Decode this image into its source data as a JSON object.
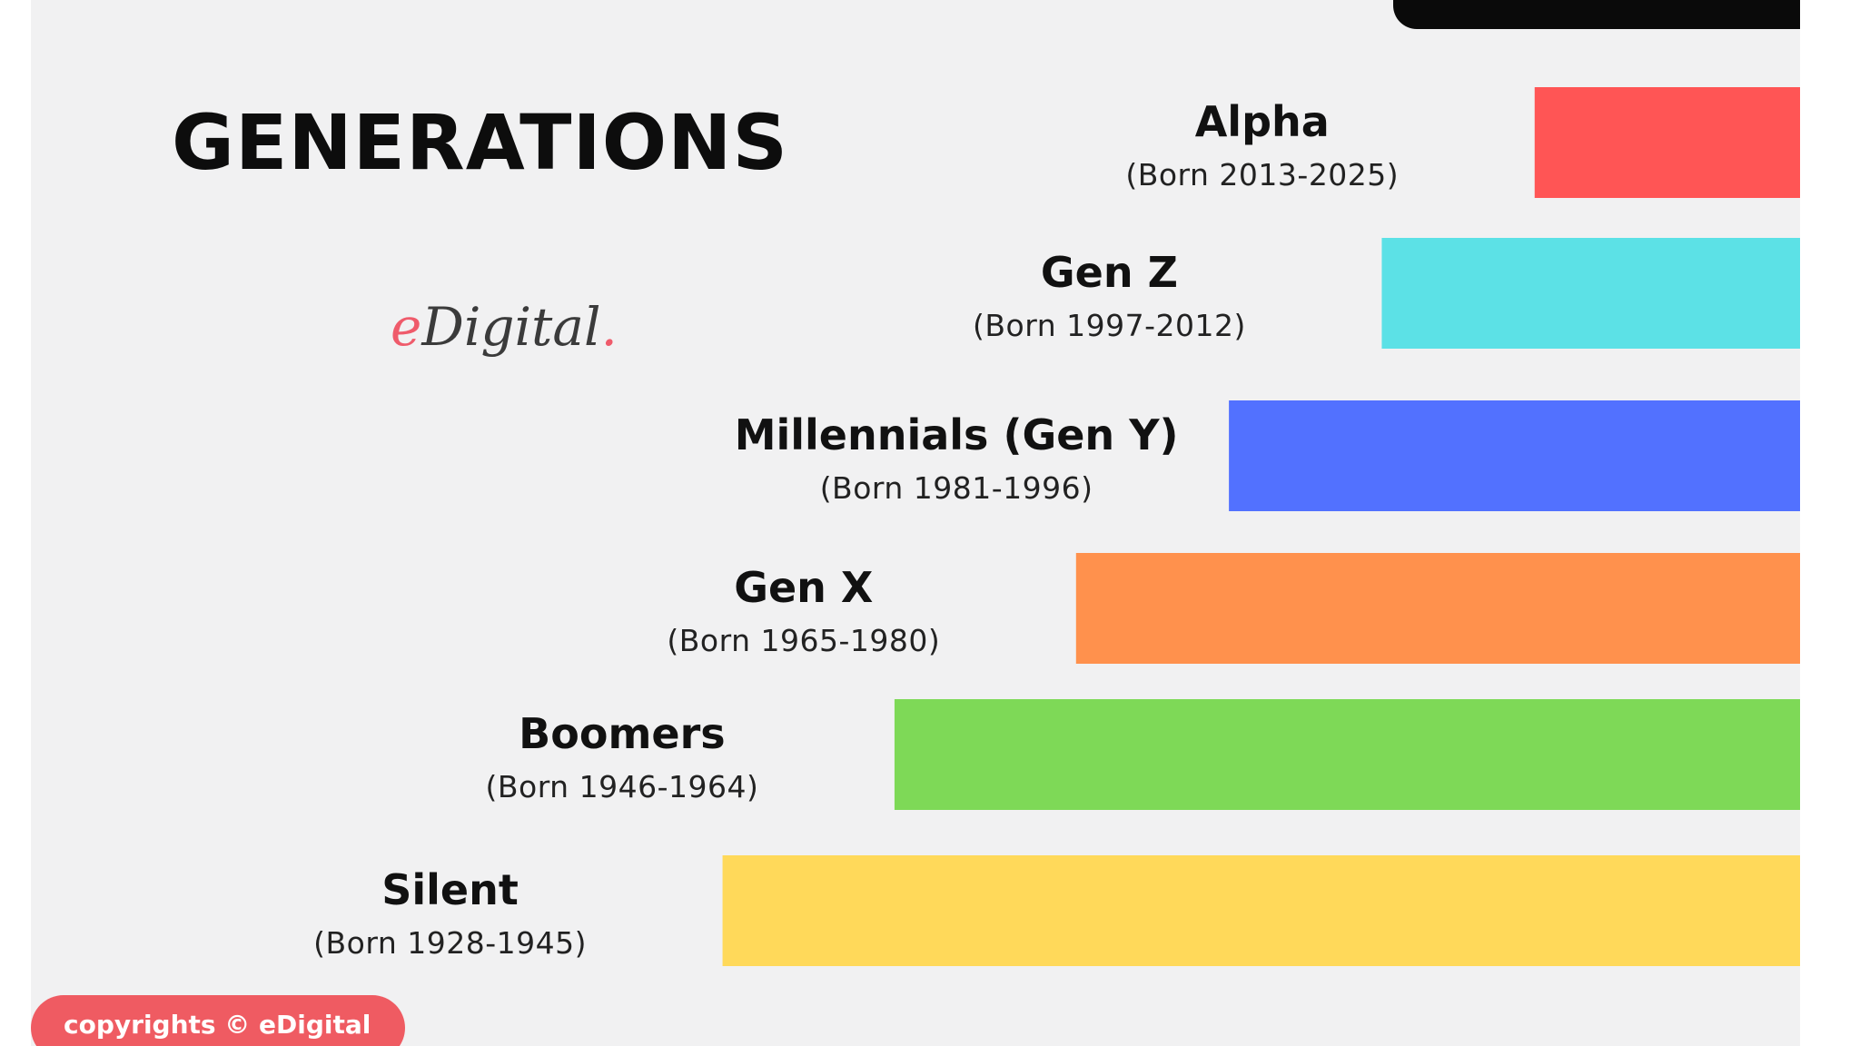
{
  "chart_data": {
    "type": "bar",
    "orientation": "horizontal",
    "title": "GENERATIONS",
    "grid": false,
    "bars": [
      {
        "name": "Alpha",
        "years": "(Born 2013-2025)",
        "born_start": 2013,
        "born_end": 2025,
        "color": "#ff5555"
      },
      {
        "name": "Gen Z",
        "years": "(Born 1997-2012)",
        "born_start": 1997,
        "born_end": 2012,
        "color": "#5ce1e6"
      },
      {
        "name": "Millennials (Gen Y)",
        "years": "(Born 1981-1996)",
        "born_start": 1981,
        "born_end": 1996,
        "color": "#5271ff"
      },
      {
        "name": "Gen X",
        "years": "(Born 1965-1980)",
        "born_start": 1965,
        "born_end": 1980,
        "color": "#ff914d"
      },
      {
        "name": "Boomers",
        "years": "(Born 1946-1964)",
        "born_start": 1946,
        "born_end": 1964,
        "color": "#7ed957"
      },
      {
        "name": "Silent",
        "years": "(Born 1928-1945)",
        "born_start": 1928,
        "born_end": 1945,
        "color": "#ffd95a"
      }
    ]
  },
  "branding": {
    "logo_e": "e",
    "logo_rest": "Digital",
    "logo_dot": ".",
    "copyright": "copyrights © eDigital"
  },
  "colors": {
    "background": "#f1f1f2",
    "accent": "#ef5b62",
    "top_bar": "#0a0a0a"
  }
}
